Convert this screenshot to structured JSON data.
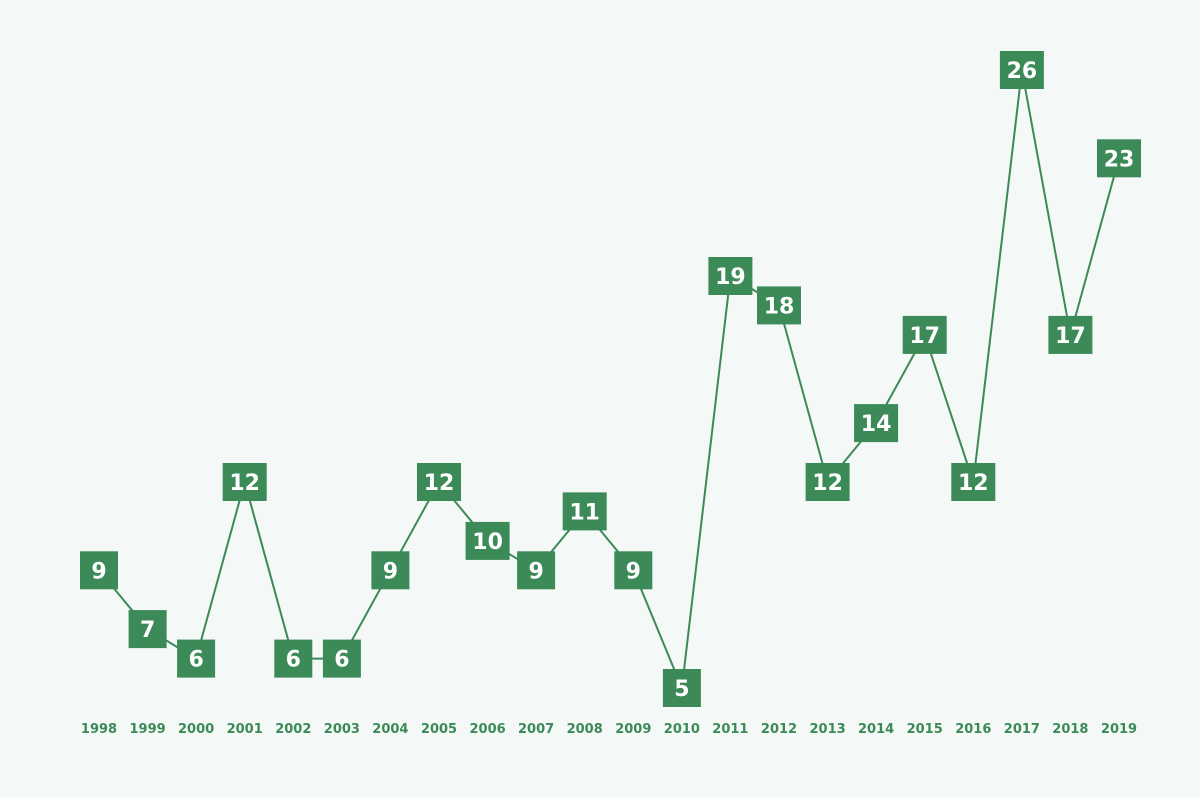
{
  "chart_data": {
    "type": "line",
    "title": "",
    "xlabel": "",
    "ylabel": "",
    "categories": [
      "1998",
      "1999",
      "2000",
      "2001",
      "2002",
      "2003",
      "2004",
      "2005",
      "2006",
      "2007",
      "2008",
      "2009",
      "2010",
      "2011",
      "2012",
      "2013",
      "2014",
      "2015",
      "2016",
      "2017",
      "2018",
      "2019"
    ],
    "series": [
      {
        "values": [
          9,
          7,
          6,
          12,
          6,
          6,
          9,
          12,
          10,
          9,
          11,
          9,
          5,
          19,
          18,
          12,
          14,
          17,
          12,
          26,
          17,
          23
        ]
      }
    ],
    "data_labels": true,
    "grid": false,
    "legend": "none",
    "ylim": [
      5,
      26
    ],
    "colors": {
      "background": "#f4f8f6",
      "line": "#3b8a57",
      "marker": "#3b8a57",
      "label_text": "#ffffff",
      "tick_text": "#3b8a57"
    }
  }
}
